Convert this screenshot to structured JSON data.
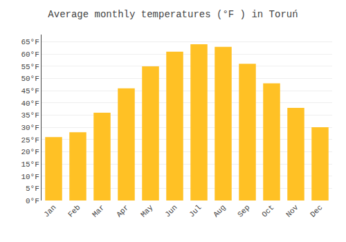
{
  "chart_data": {
    "type": "bar",
    "title": "Average monthly temperatures (°F ) in Toruń",
    "categories": [
      "Jan",
      "Feb",
      "Mar",
      "Apr",
      "May",
      "Jun",
      "Jul",
      "Aug",
      "Sep",
      "Oct",
      "Nov",
      "Dec"
    ],
    "values": [
      26,
      28,
      36,
      46,
      55,
      61,
      64,
      63,
      56,
      48,
      38,
      30
    ],
    "color": "#FFC125",
    "ylim": [
      0,
      68
    ],
    "yticks": [
      {
        "value": 0,
        "label": "0°F"
      },
      {
        "value": 5,
        "label": "5°F"
      },
      {
        "value": 10,
        "label": "10°F"
      },
      {
        "value": 15,
        "label": "15°F"
      },
      {
        "value": 20,
        "label": "20°F"
      },
      {
        "value": 25,
        "label": "25°F"
      },
      {
        "value": 30,
        "label": "30°F"
      },
      {
        "value": 35,
        "label": "35°F"
      },
      {
        "value": 40,
        "label": "40°F"
      },
      {
        "value": 45,
        "label": "45°F"
      },
      {
        "value": 50,
        "label": "50°F"
      },
      {
        "value": 55,
        "label": "55°F"
      },
      {
        "value": 60,
        "label": "60°F"
      },
      {
        "value": 65,
        "label": "65°F"
      }
    ],
    "grid": true
  }
}
